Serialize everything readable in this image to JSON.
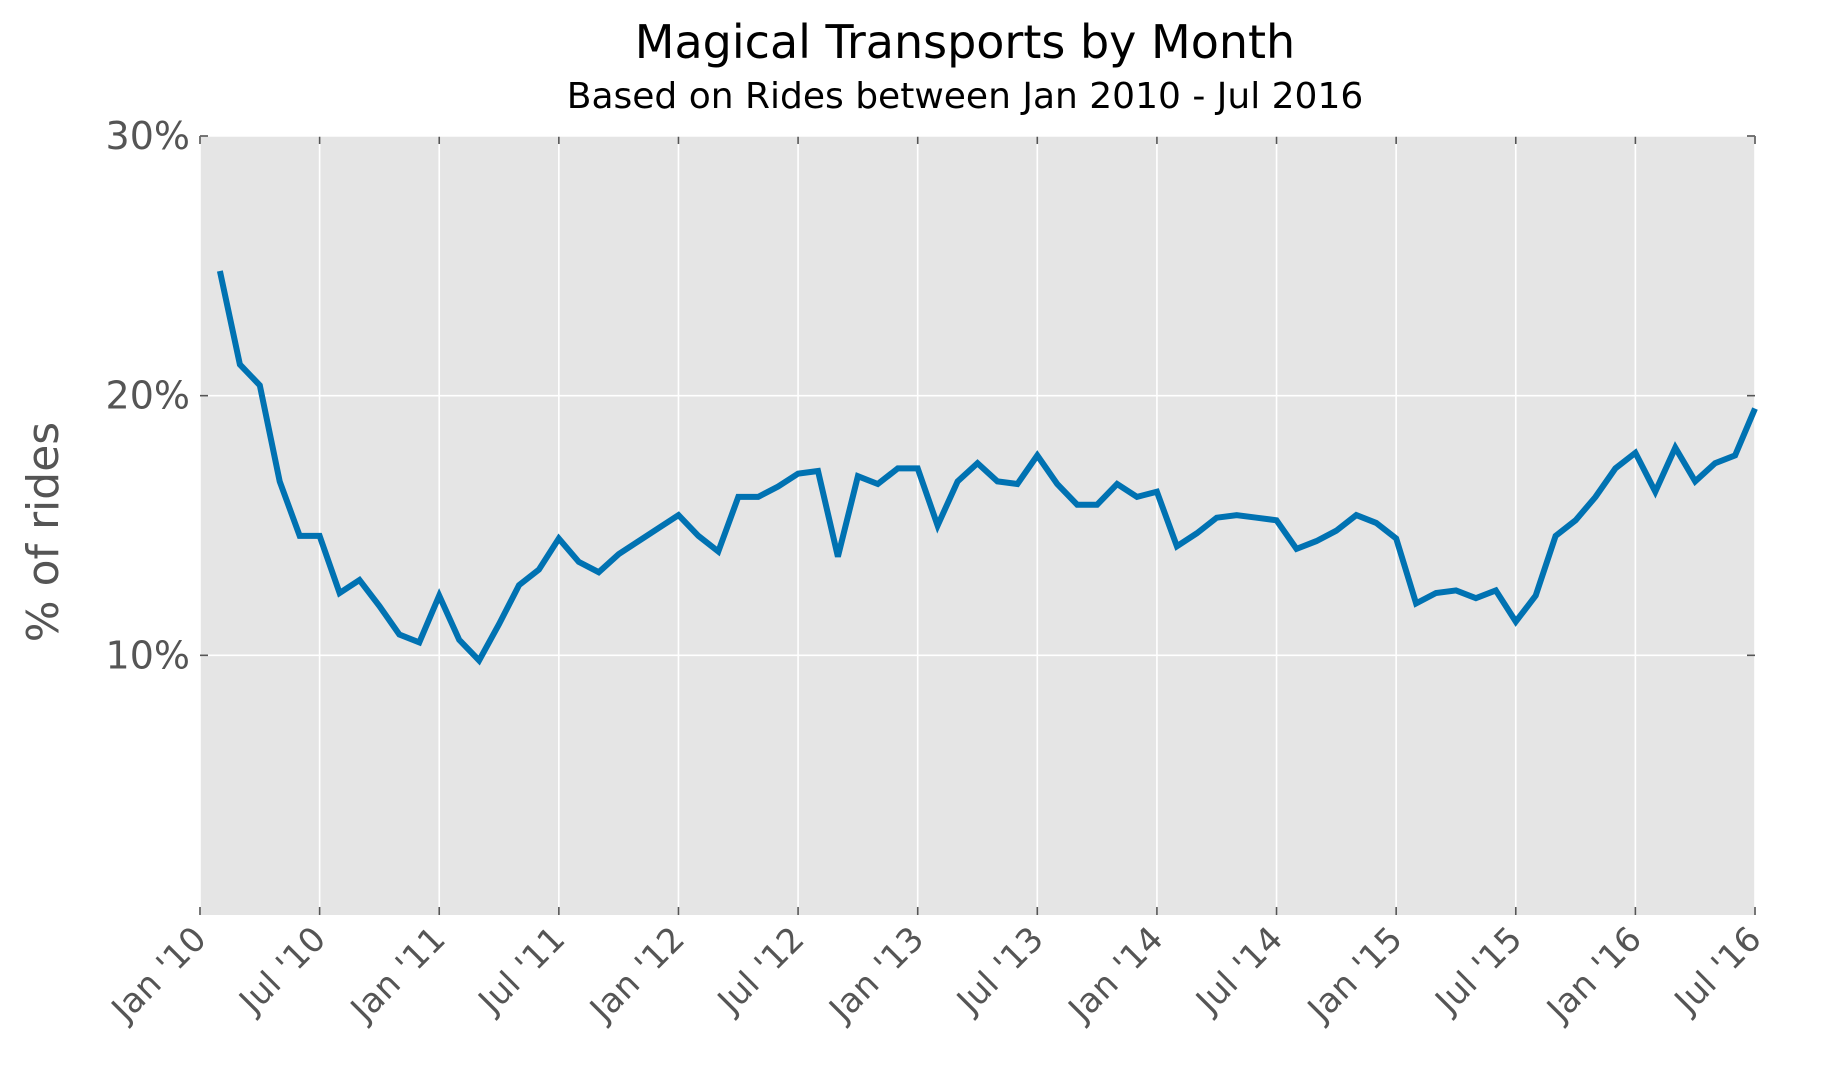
{
  "chart_data": {
    "type": "line",
    "title": "Magical Transports by Month",
    "subtitle": "Based on Rides between Jan 2010 - Jul 2016",
    "xlabel": "",
    "ylabel": "% of rides",
    "ylim": [
      0,
      30
    ],
    "xlim": [
      "2010-01",
      "2016-07"
    ],
    "yticks": [
      {
        "value": 10,
        "label": "10%"
      },
      {
        "value": 20,
        "label": "20%"
      },
      {
        "value": 30,
        "label": "30%"
      }
    ],
    "xticks": [
      {
        "value": "2010-01",
        "label": "Jan '10"
      },
      {
        "value": "2010-07",
        "label": "Jul '10"
      },
      {
        "value": "2011-01",
        "label": "Jan '11"
      },
      {
        "value": "2011-07",
        "label": "Jul '11"
      },
      {
        "value": "2012-01",
        "label": "Jan '12"
      },
      {
        "value": "2012-07",
        "label": "Jul '12"
      },
      {
        "value": "2013-01",
        "label": "Jan '13"
      },
      {
        "value": "2013-07",
        "label": "Jul '13"
      },
      {
        "value": "2014-01",
        "label": "Jan '14"
      },
      {
        "value": "2014-07",
        "label": "Jul '14"
      },
      {
        "value": "2015-01",
        "label": "Jan '15"
      },
      {
        "value": "2015-07",
        "label": "Jul '15"
      },
      {
        "value": "2016-01",
        "label": "Jan '16"
      },
      {
        "value": "2016-07",
        "label": "Jul '16"
      }
    ],
    "grid": true,
    "background": "#e5e5e5",
    "line_color": "#0072b2",
    "series": [
      {
        "x": [
          "2010-02",
          "2010-03",
          "2010-04",
          "2010-05",
          "2010-06",
          "2010-07",
          "2010-08",
          "2010-09",
          "2010-10",
          "2010-11",
          "2010-12",
          "2011-01",
          "2011-02",
          "2011-03",
          "2011-04",
          "2011-05",
          "2011-06",
          "2011-07",
          "2011-08",
          "2011-09",
          "2011-10",
          "2011-11",
          "2011-12",
          "2012-01",
          "2012-02",
          "2012-03",
          "2012-04",
          "2012-05",
          "2012-06",
          "2012-07",
          "2012-08",
          "2012-09",
          "2012-10",
          "2012-11",
          "2012-12",
          "2013-01",
          "2013-02",
          "2013-03",
          "2013-04",
          "2013-05",
          "2013-06",
          "2013-07",
          "2013-08",
          "2013-09",
          "2013-10",
          "2013-11",
          "2013-12",
          "2014-01",
          "2014-02",
          "2014-03",
          "2014-04",
          "2014-05",
          "2014-06",
          "2014-07",
          "2014-08",
          "2014-09",
          "2014-10",
          "2014-11",
          "2014-12",
          "2015-01",
          "2015-02",
          "2015-03",
          "2015-04",
          "2015-05",
          "2015-06",
          "2015-07",
          "2015-08",
          "2015-09",
          "2015-10",
          "2015-11",
          "2015-12",
          "2016-01",
          "2016-02",
          "2016-03",
          "2016-04",
          "2016-05",
          "2016-06",
          "2016-07"
        ],
        "values": [
          24.8,
          21.2,
          20.4,
          16.7,
          14.6,
          14.6,
          12.4,
          12.9,
          11.9,
          10.8,
          10.5,
          12.3,
          10.6,
          9.8,
          11.2,
          12.7,
          13.3,
          14.5,
          13.6,
          13.2,
          13.9,
          14.4,
          14.9,
          15.4,
          14.6,
          14.0,
          16.1,
          16.1,
          16.5,
          17.0,
          17.1,
          13.8,
          16.9,
          16.6,
          17.2,
          17.2,
          15.0,
          16.7,
          17.4,
          16.7,
          16.6,
          17.7,
          16.6,
          15.8,
          15.8,
          16.6,
          16.1,
          16.3,
          14.2,
          14.7,
          15.3,
          15.4,
          15.3,
          15.2,
          14.1,
          14.4,
          14.8,
          15.4,
          15.1,
          14.5,
          12.0,
          12.4,
          12.5,
          12.2,
          12.5,
          11.3,
          12.3,
          14.6,
          15.2,
          16.1,
          17.2,
          17.8,
          16.3,
          18.0,
          16.7,
          17.4,
          17.7,
          19.5
        ]
      }
    ]
  }
}
